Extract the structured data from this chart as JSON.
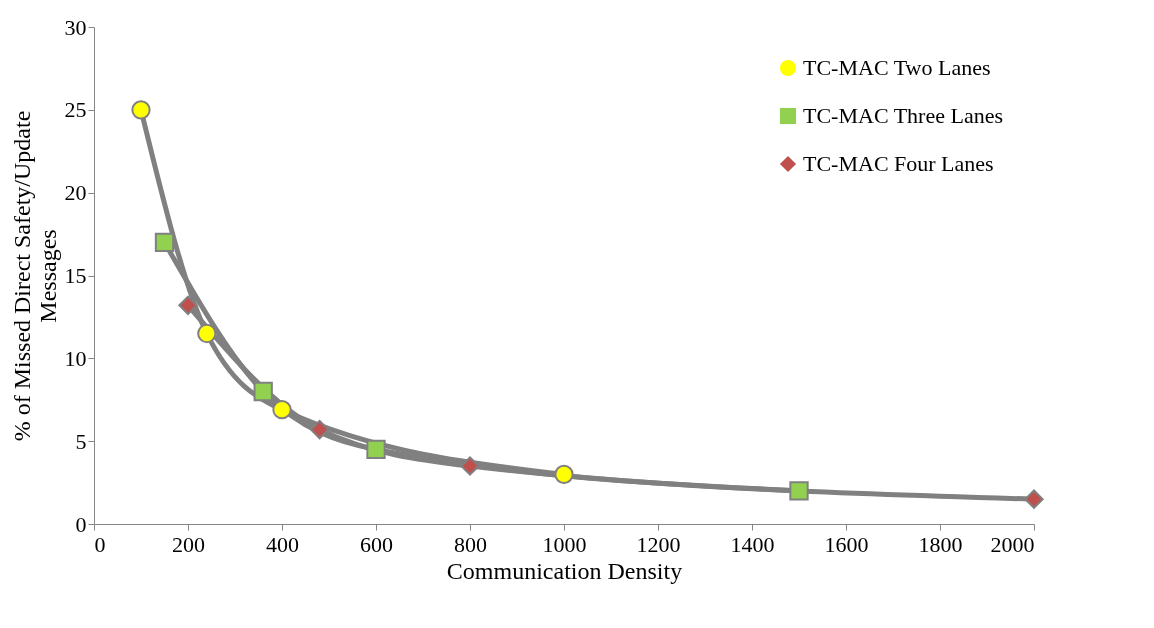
{
  "chart_data": {
    "type": "line",
    "xlabel": "Communication Density",
    "ylabel": "% of Missed Direct Safety/Update Messages",
    "xlim": [
      0,
      2000
    ],
    "xticks": [
      0,
      200,
      400,
      600,
      800,
      1000,
      1200,
      1400,
      1600,
      1800,
      2000
    ],
    "ylim": [
      0,
      30
    ],
    "yticks": [
      0,
      5,
      10,
      15,
      20,
      25,
      30
    ],
    "grid": false,
    "legend": "top right",
    "series": [
      {
        "name": "TC-MAC Two Lanes",
        "color": "#ffff00",
        "marker": "circle",
        "x": [
          100,
          240,
          400,
          1000
        ],
        "values": [
          25,
          11.5,
          6.9,
          3.0
        ]
      },
      {
        "name": "TC-MAC Three Lanes",
        "color": "#92d050",
        "marker": "square",
        "x": [
          150,
          360,
          600,
          1500
        ],
        "values": [
          17,
          8.0,
          4.5,
          2.0
        ]
      },
      {
        "name": "TC-MAC Four Lanes",
        "color": "#c0504d",
        "marker": "diamond",
        "x": [
          200,
          480,
          800,
          2000
        ],
        "values": [
          13.2,
          5.7,
          3.5,
          1.5
        ]
      }
    ]
  }
}
